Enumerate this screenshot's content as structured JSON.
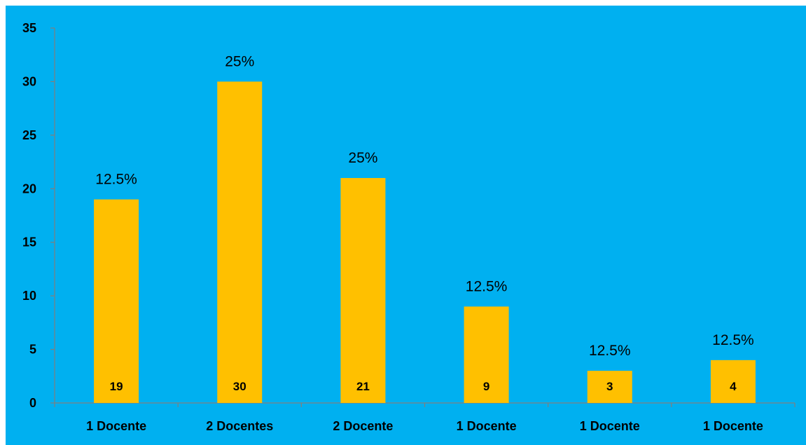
{
  "background": "#00B0F0",
  "bar_color": "#FFC000",
  "chart_data": {
    "type": "bar",
    "title": "",
    "xlabel": "",
    "ylabel": "",
    "categories": [
      "1 Docente",
      "2 Docentes",
      "2 Docente",
      "1 Docente",
      "1 Docente",
      "1 Docente"
    ],
    "values": [
      19,
      30,
      21,
      9,
      3,
      4
    ],
    "value_labels": [
      "19",
      "30",
      "21",
      "9",
      "3",
      "4"
    ],
    "percent_labels": [
      "12.5%",
      "25%",
      "25%",
      "12.5%",
      "12.5%",
      "12.5%"
    ],
    "ylim": [
      0,
      35
    ],
    "yticks": [
      0,
      5,
      10,
      15,
      20,
      25,
      30,
      35
    ],
    "grid": false,
    "legend": "none"
  }
}
